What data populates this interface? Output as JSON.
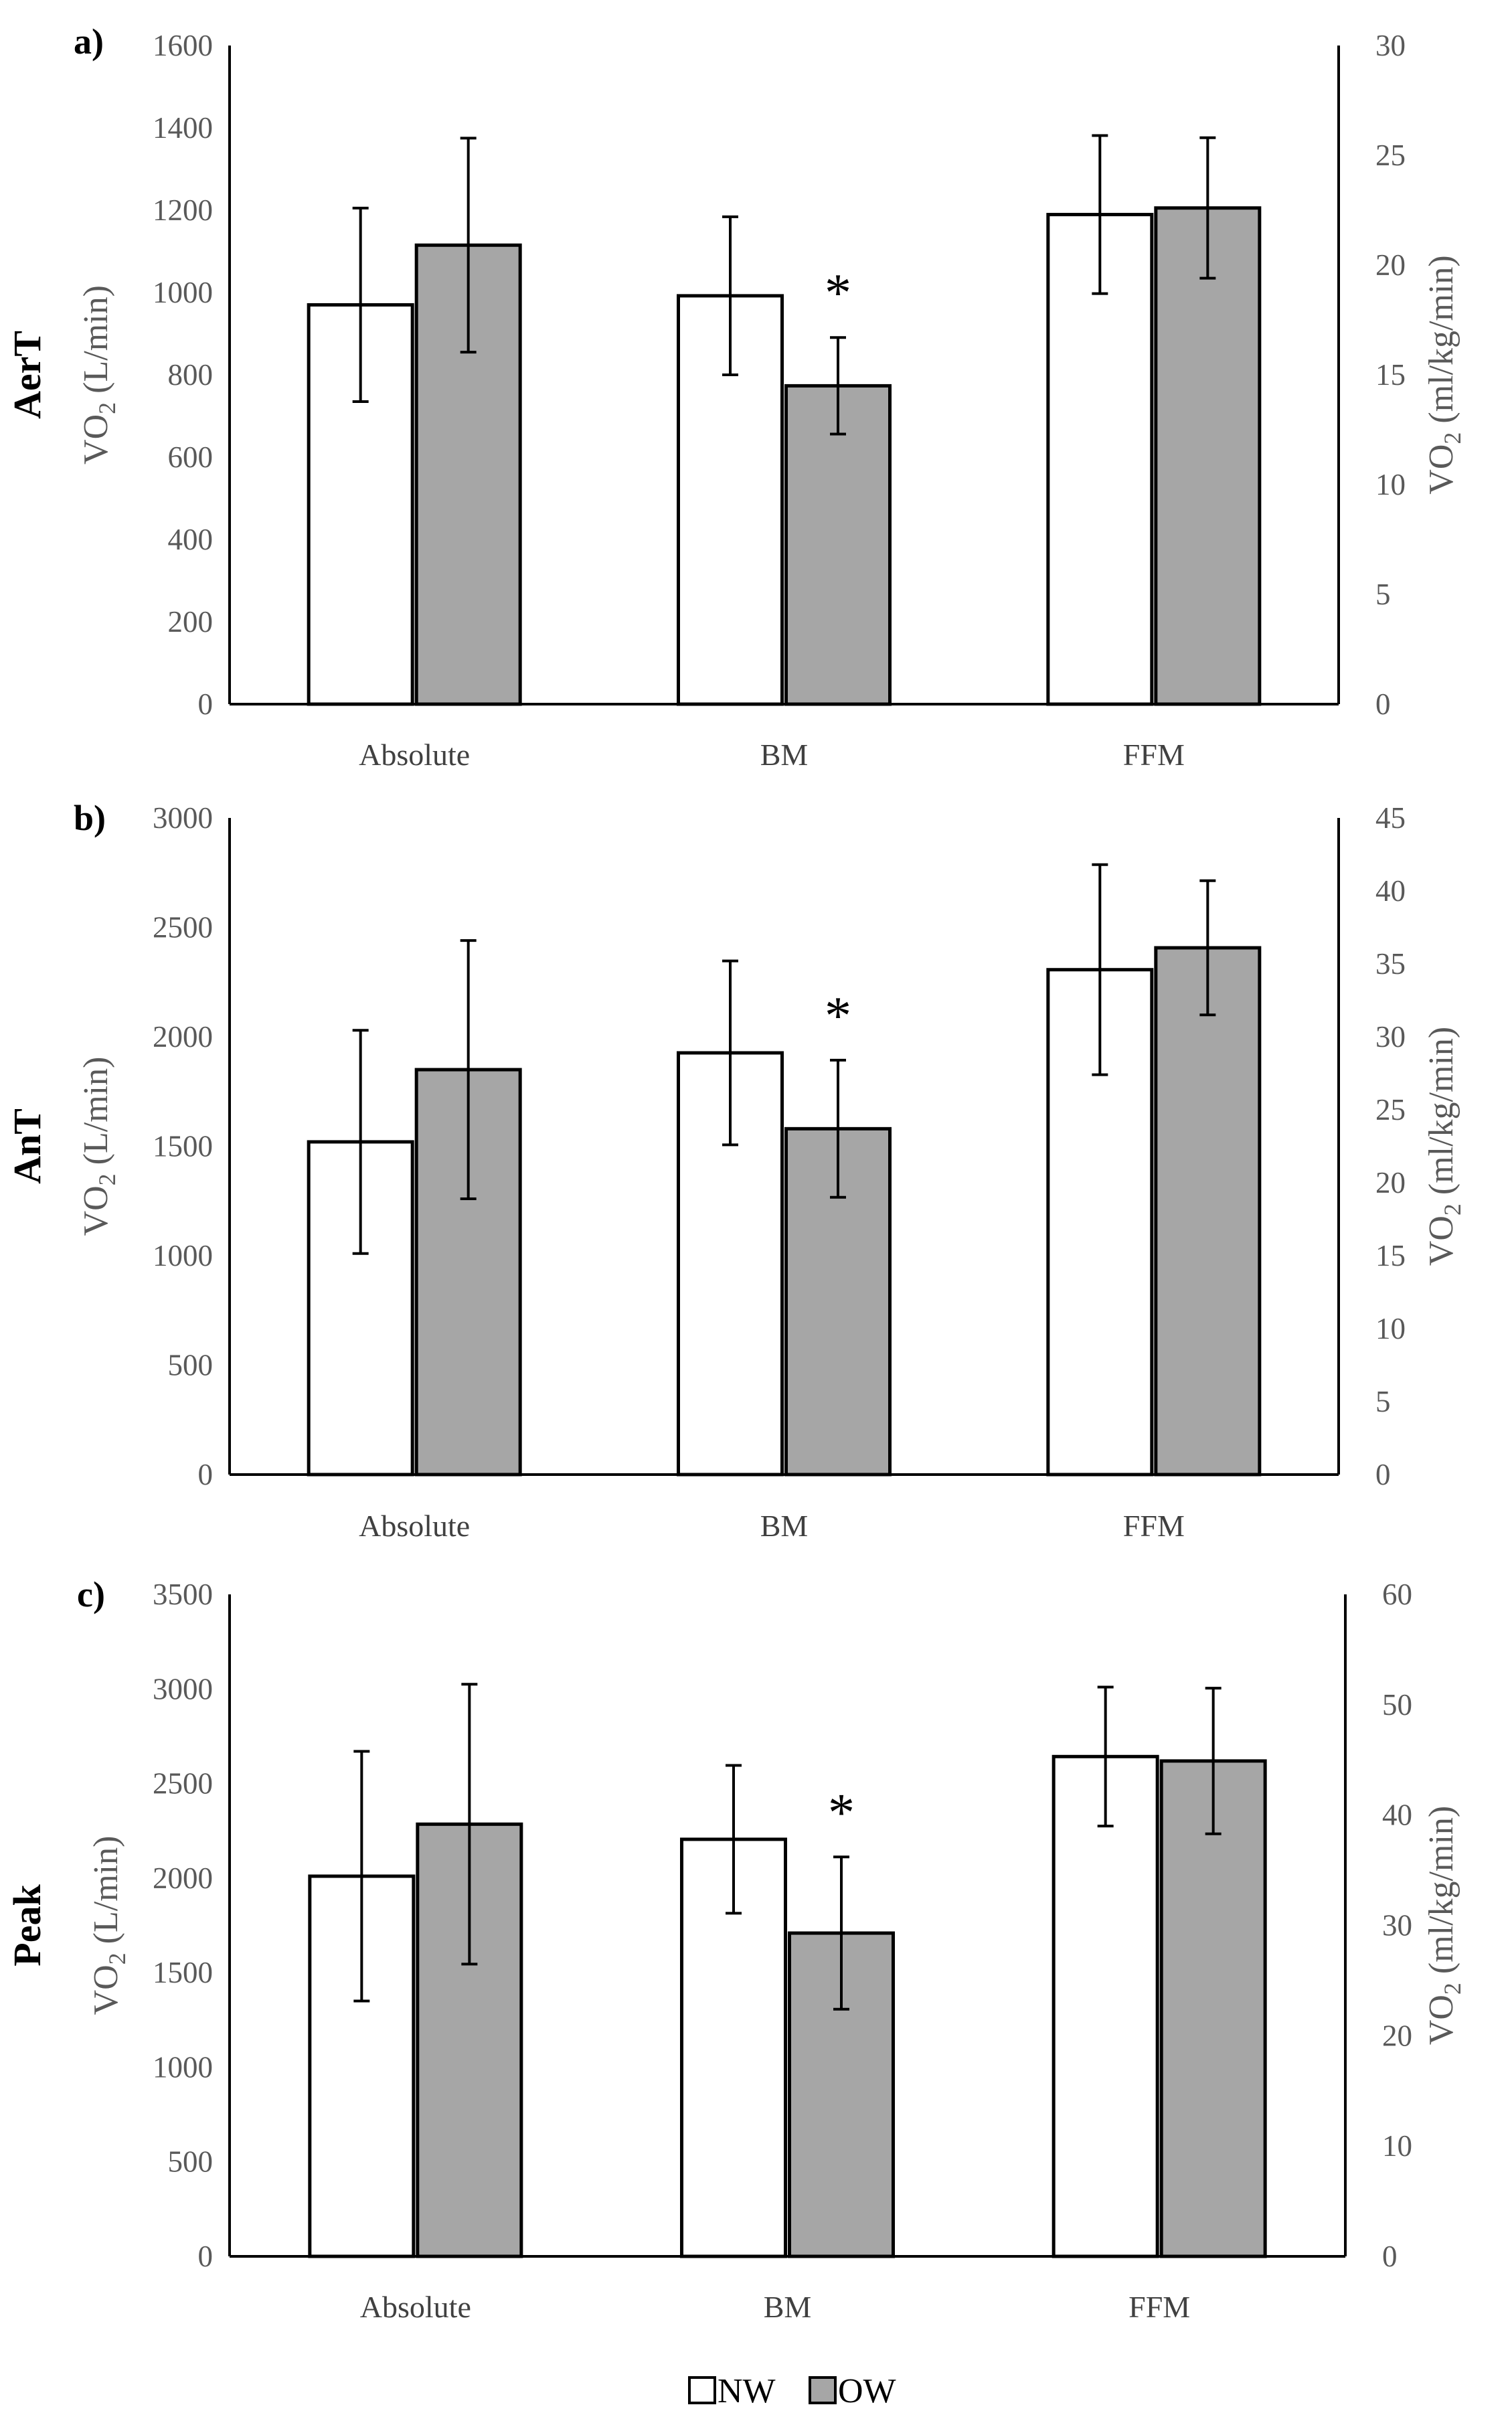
{
  "legend": [
    {
      "label": "NW",
      "color": "#ffffff"
    },
    {
      "label": "OW",
      "color": "#a6a6a6"
    }
  ],
  "chart_data": [
    {
      "type": "bar",
      "panel_label": "a)",
      "row_label": "AerT",
      "categories": [
        "Absolute",
        "BM",
        "FFM"
      ],
      "left_axis": {
        "label": "VO2 (L/min)",
        "lim": [
          0,
          1600
        ],
        "ticks": [
          "0",
          "200",
          "400",
          "600",
          "800",
          "1000",
          "1200",
          "1400",
          "1600"
        ]
      },
      "right_axis": {
        "label": "VO2 (ml/kg/min)",
        "lim": [
          0,
          30
        ],
        "ticks": [
          "0",
          "5",
          "10",
          "15",
          "20",
          "25",
          "30"
        ]
      },
      "series": [
        {
          "name": "NW",
          "values": [
            970,
            18.6,
            22.3
          ],
          "errors": [
            235,
            3.6,
            3.6
          ]
        },
        {
          "name": "OW",
          "values": [
            1115,
            14.5,
            22.6
          ],
          "errors": [
            260,
            2.2,
            3.2
          ]
        }
      ],
      "axis_for_category": [
        "left",
        "right",
        "right"
      ],
      "significance": [
        {
          "category": "BM",
          "label": "*"
        }
      ]
    },
    {
      "type": "bar",
      "panel_label": "b)",
      "row_label": "AnT",
      "categories": [
        "Absolute",
        "BM",
        "FFM"
      ],
      "left_axis": {
        "label": "VO2 (L/min)",
        "lim": [
          0,
          3000
        ],
        "ticks": [
          "0",
          "500",
          "1000",
          "1500",
          "2000",
          "2500",
          "3000"
        ]
      },
      "right_axis": {
        "label": "VO2 (ml/kg/min)",
        "lim": [
          0,
          45
        ],
        "ticks": [
          "0",
          "5",
          "10",
          "15",
          "20",
          "25",
          "30",
          "35",
          "40",
          "45"
        ]
      },
      "series": [
        {
          "name": "NW",
          "values": [
            1520,
            28.9,
            34.6
          ],
          "errors": [
            510,
            6.3,
            7.2
          ]
        },
        {
          "name": "OW",
          "values": [
            1850,
            23.7,
            36.1
          ],
          "errors": [
            590,
            4.7,
            4.6
          ]
        }
      ],
      "axis_for_category": [
        "left",
        "right",
        "right"
      ],
      "significance": [
        {
          "category": "BM",
          "label": "*"
        }
      ]
    },
    {
      "type": "bar",
      "panel_label": "c)",
      "row_label": "Peak",
      "categories": [
        "Absolute",
        "BM",
        "FFM"
      ],
      "left_axis": {
        "label": "VO2 (L/min)",
        "lim": [
          0,
          3500
        ],
        "ticks": [
          "0",
          "500",
          "1000",
          "1500",
          "2000",
          "2500",
          "3000",
          "3500"
        ]
      },
      "right_axis": {
        "label": "VO2 (ml/kg/min)",
        "lim": [
          0,
          60
        ],
        "ticks": [
          "0",
          "10",
          "20",
          "30",
          "40",
          "50",
          "60"
        ]
      },
      "series": [
        {
          "name": "NW",
          "values": [
            2010,
            37.8,
            45.3
          ],
          "errors": [
            660,
            6.7,
            6.3
          ]
        },
        {
          "name": "OW",
          "values": [
            2285,
            29.3,
            44.9
          ],
          "errors": [
            740,
            6.9,
            6.6
          ]
        }
      ],
      "axis_for_category": [
        "left",
        "right",
        "right"
      ],
      "significance": [
        {
          "category": "BM",
          "label": "*"
        }
      ]
    }
  ]
}
